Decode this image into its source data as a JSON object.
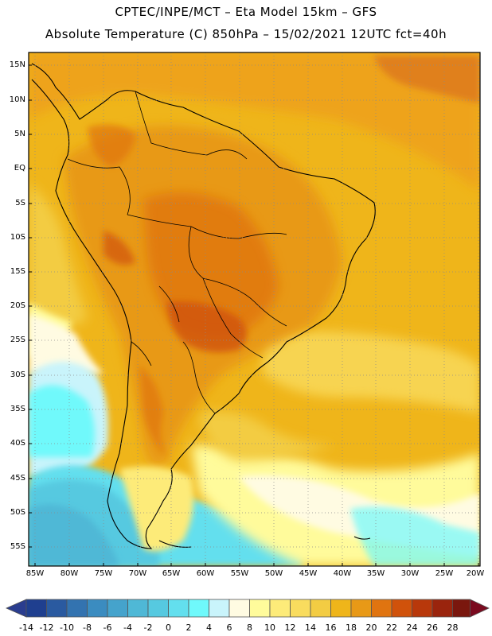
{
  "header": {
    "title_line1": "CPTEC/INPE/MCT –  Eta Model 15km – GFS",
    "title_line2": "Absolute Temperature (C) 850hPa – 15/02/2021 12UTC fct=40h"
  },
  "map": {
    "lat_labels": [
      "15N",
      "10N",
      "5N",
      "EQ",
      "5S",
      "10S",
      "15S",
      "20S",
      "25S",
      "30S",
      "35S",
      "40S",
      "45S",
      "50S",
      "55S"
    ],
    "lon_labels": [
      "85W",
      "80W",
      "75W",
      "70W",
      "65W",
      "60W",
      "55W",
      "50W",
      "45W",
      "40W",
      "35W",
      "30W",
      "25W",
      "20W"
    ]
  },
  "colorbar": {
    "labels": [
      "-14",
      "-12",
      "-10",
      "-8",
      "-6",
      "-4",
      "-2",
      "0",
      "2",
      "4",
      "6",
      "8",
      "10",
      "12",
      "14",
      "16",
      "18",
      "20",
      "22",
      "24",
      "26",
      "28"
    ],
    "colors": [
      "#1f3f8f",
      "#2a5aa0",
      "#3373b0",
      "#3b8cc0",
      "#45a3cc",
      "#4fb8d6",
      "#56c9e0",
      "#63dfee",
      "#6ff9fb",
      "#c9f4fb",
      "#fffbe2",
      "#fffb9b",
      "#fdeb79",
      "#f9dc5e",
      "#f3cc43",
      "#efb51a",
      "#e89917",
      "#e07410",
      "#d0520b",
      "#b8380b",
      "#9a240d",
      "#7a170e"
    ],
    "under_color": "#2a3d8f",
    "over_color": "#7a0a1f"
  }
}
